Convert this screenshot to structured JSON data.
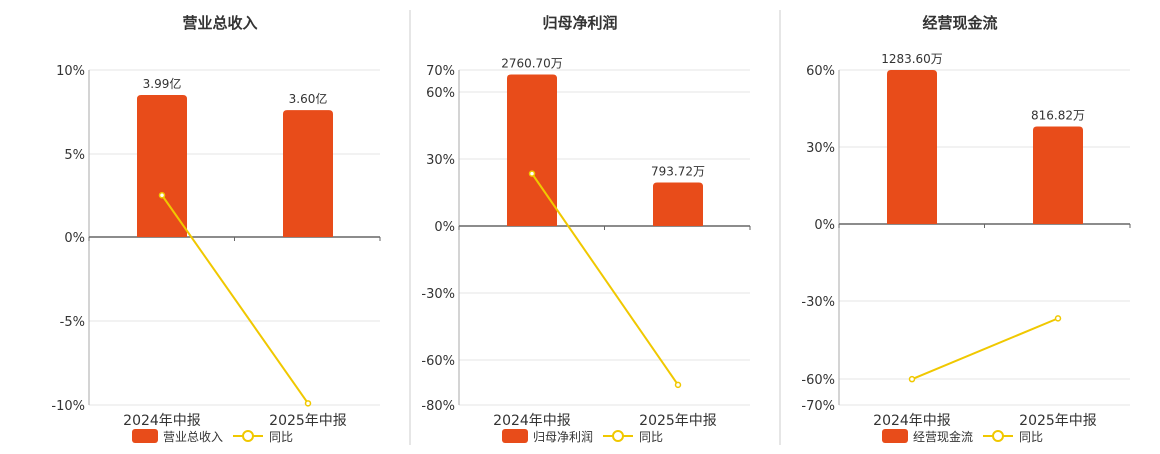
{
  "colors": {
    "bar": "#e84c1a",
    "line": "#f0c800",
    "axis": "#666666",
    "grid": "#e6e6e6",
    "divider": "#cccccc",
    "text": "#333333"
  },
  "chart_data": [
    {
      "type": "bar",
      "title": "营业总收入",
      "categories": [
        "2024年中报",
        "2025年中报"
      ],
      "yticks": [
        "10%",
        "5%",
        "0%",
        "-5%",
        "-10%"
      ],
      "ylim": [
        -10,
        10
      ],
      "bar_series_name": "营业总收入",
      "line_series_name": "同比",
      "bar_labels": [
        "3.99亿",
        "3.60亿"
      ],
      "bar_values": [
        8.5,
        7.6
      ],
      "yoy_values": [
        2.5,
        -9.9
      ]
    },
    {
      "type": "bar",
      "title": "归母净利润",
      "categories": [
        "2024年中报",
        "2025年中报"
      ],
      "yticks": [
        "70%",
        "60%",
        "30%",
        "0%",
        "-30%",
        "-60%",
        "-80%"
      ],
      "ylim": [
        -80,
        70
      ],
      "bar_series_name": "归母净利润",
      "line_series_name": "同比",
      "bar_labels": [
        "2760.70万",
        "793.72万"
      ],
      "bar_values": [
        68,
        19.5
      ],
      "yoy_values": [
        23.5,
        -71
      ]
    },
    {
      "type": "bar",
      "title": "经营现金流",
      "categories": [
        "2024年中报",
        "2025年中报"
      ],
      "yticks": [
        "60%",
        "30%",
        "0%",
        "-30%",
        "-60%",
        "-70%"
      ],
      "ylim": [
        -70,
        60
      ],
      "bar_series_name": "经营现金流",
      "line_series_name": "同比",
      "bar_labels": [
        "1283.60万",
        "816.82万"
      ],
      "bar_values": [
        60,
        38
      ],
      "yoy_values": [
        -60,
        -36.5
      ]
    }
  ]
}
